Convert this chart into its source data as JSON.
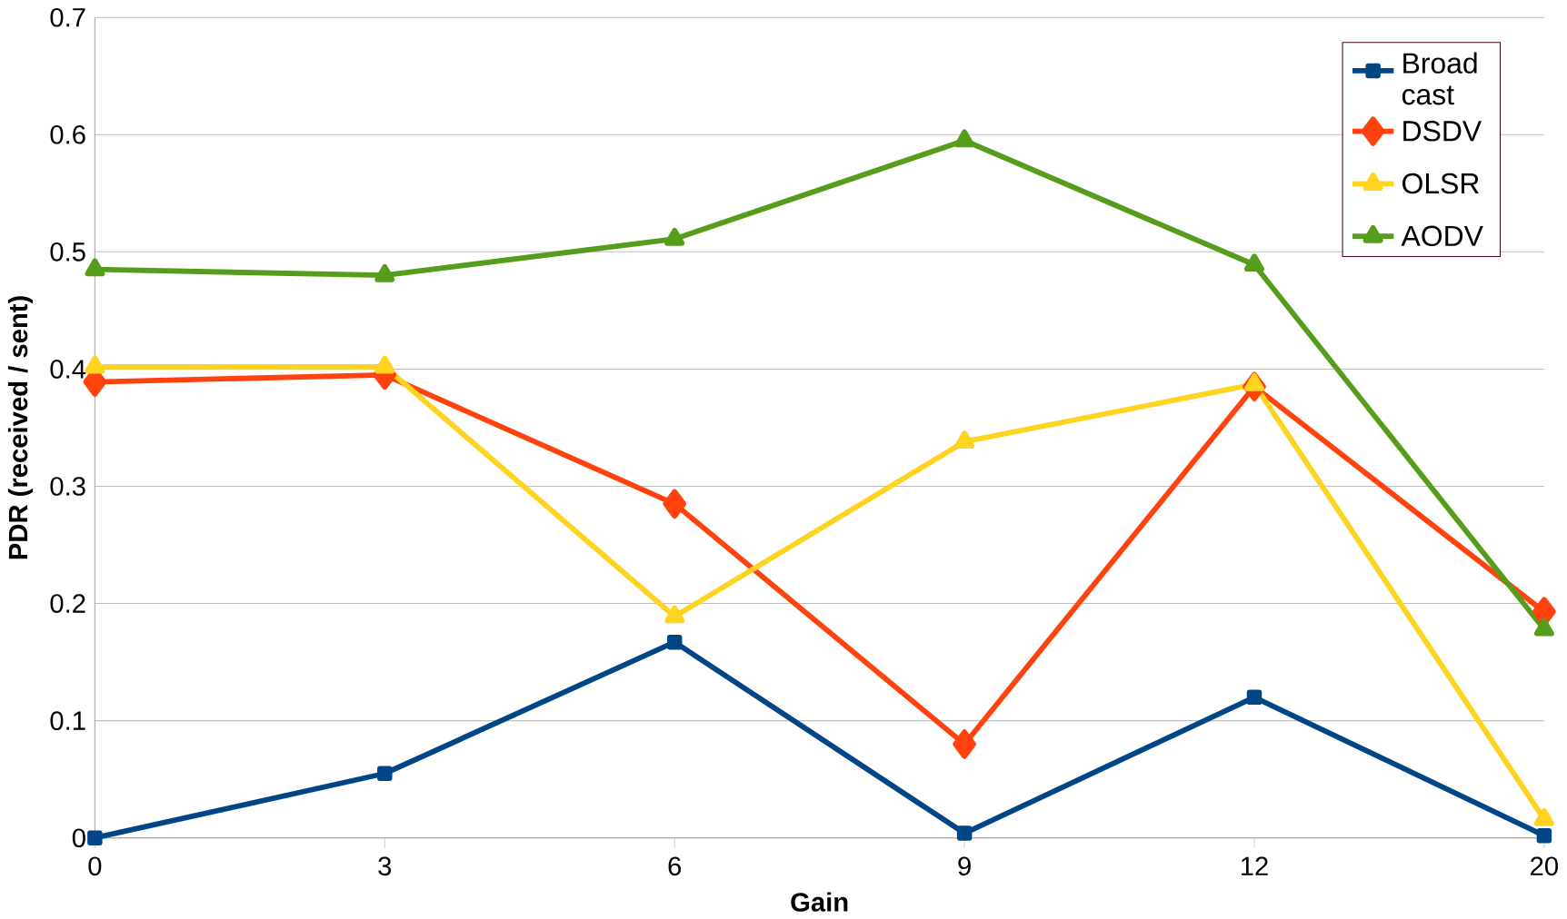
{
  "chart_data": {
    "type": "line",
    "xlabel": "Gain",
    "ylabel": "PDR (received / sent)",
    "categories": [
      "0",
      "3",
      "6",
      "9",
      "12",
      "20"
    ],
    "series": [
      {
        "name": "Broad cast",
        "color": "#004586",
        "marker": "square",
        "values": [
          0.0,
          0.055,
          0.167,
          0.004,
          0.12,
          0.002
        ]
      },
      {
        "name": "DSDV",
        "color": "#ff420e",
        "marker": "diamond",
        "values": [
          0.389,
          0.395,
          0.285,
          0.08,
          0.385,
          0.193
        ]
      },
      {
        "name": "OLSR",
        "color": "#ffd320",
        "marker": "triangle down",
        "values": [
          0.402,
          0.402,
          0.189,
          0.338,
          0.387,
          0.016
        ]
      },
      {
        "name": "AODV",
        "color": "#579d1c",
        "marker": "triangle",
        "values": [
          0.485,
          0.48,
          0.511,
          0.595,
          0.489,
          0.178
        ]
      }
    ],
    "ylim": [
      0,
      0.7
    ],
    "yticks": [
      0,
      0.1,
      0.2,
      0.3,
      0.4,
      0.5,
      0.6,
      0.7
    ],
    "grid": "y",
    "legend": "top right",
    "line_style": "solid"
  }
}
